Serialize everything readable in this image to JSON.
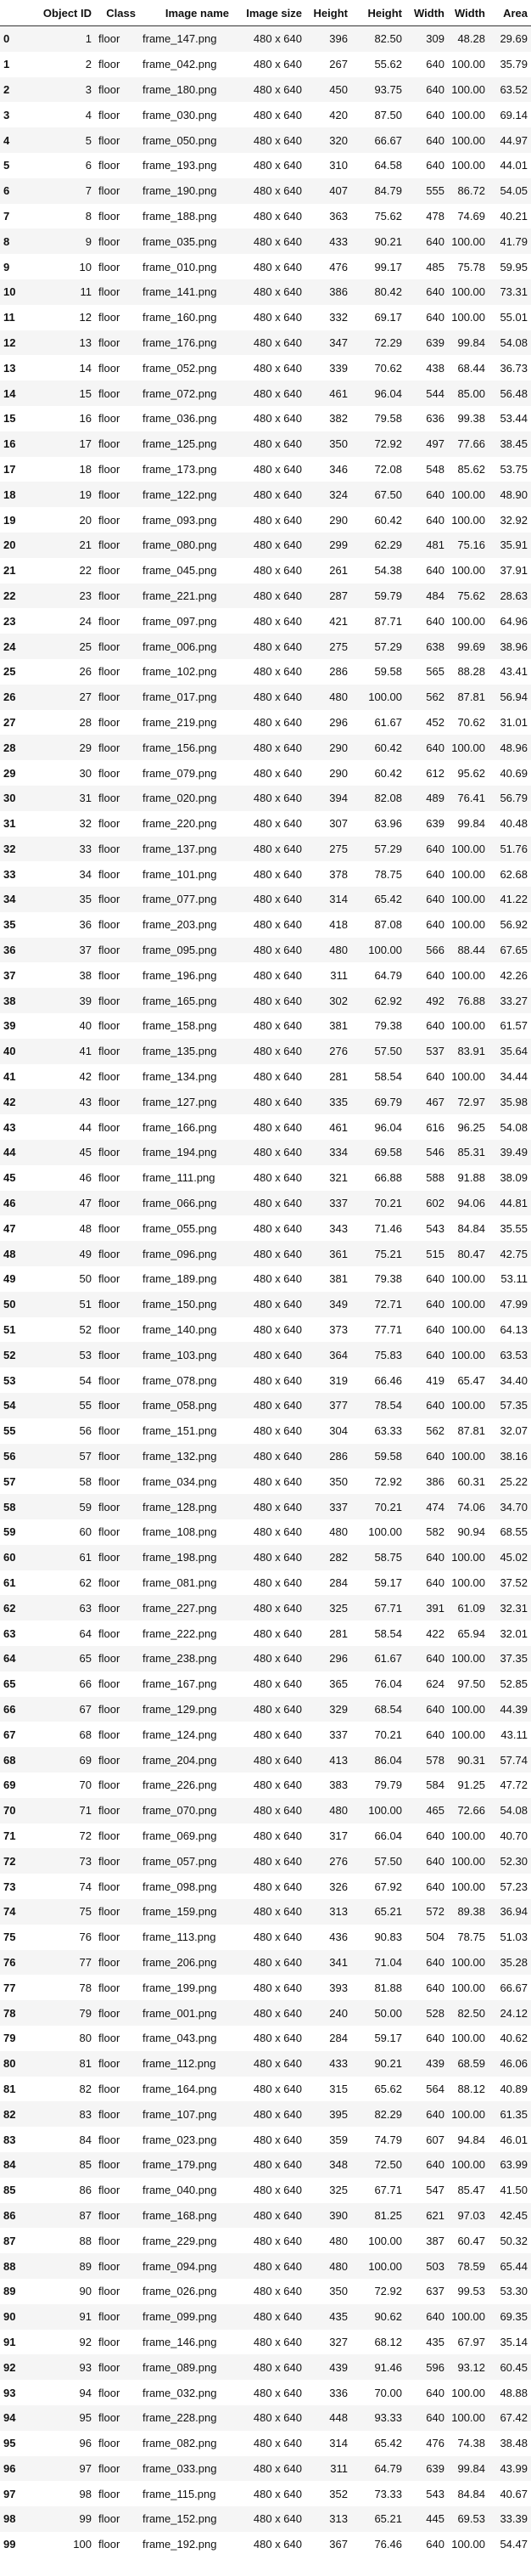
{
  "columns": [
    "",
    "Object ID",
    "Class",
    "Image name",
    "Image size",
    "Height",
    "Height",
    "Width",
    "Width",
    "Area"
  ],
  "rows": [
    [
      "0",
      "1",
      "floor",
      "frame_147.png",
      "480 x 640",
      "396",
      "82.50",
      "309",
      "48.28",
      "29.69"
    ],
    [
      "1",
      "2",
      "floor",
      "frame_042.png",
      "480 x 640",
      "267",
      "55.62",
      "640",
      "100.00",
      "35.79"
    ],
    [
      "2",
      "3",
      "floor",
      "frame_180.png",
      "480 x 640",
      "450",
      "93.75",
      "640",
      "100.00",
      "63.52"
    ],
    [
      "3",
      "4",
      "floor",
      "frame_030.png",
      "480 x 640",
      "420",
      "87.50",
      "640",
      "100.00",
      "69.14"
    ],
    [
      "4",
      "5",
      "floor",
      "frame_050.png",
      "480 x 640",
      "320",
      "66.67",
      "640",
      "100.00",
      "44.97"
    ],
    [
      "5",
      "6",
      "floor",
      "frame_193.png",
      "480 x 640",
      "310",
      "64.58",
      "640",
      "100.00",
      "44.01"
    ],
    [
      "6",
      "7",
      "floor",
      "frame_190.png",
      "480 x 640",
      "407",
      "84.79",
      "555",
      "86.72",
      "54.05"
    ],
    [
      "7",
      "8",
      "floor",
      "frame_188.png",
      "480 x 640",
      "363",
      "75.62",
      "478",
      "74.69",
      "40.21"
    ],
    [
      "8",
      "9",
      "floor",
      "frame_035.png",
      "480 x 640",
      "433",
      "90.21",
      "640",
      "100.00",
      "41.79"
    ],
    [
      "9",
      "10",
      "floor",
      "frame_010.png",
      "480 x 640",
      "476",
      "99.17",
      "485",
      "75.78",
      "59.95"
    ],
    [
      "10",
      "11",
      "floor",
      "frame_141.png",
      "480 x 640",
      "386",
      "80.42",
      "640",
      "100.00",
      "73.31"
    ],
    [
      "11",
      "12",
      "floor",
      "frame_160.png",
      "480 x 640",
      "332",
      "69.17",
      "640",
      "100.00",
      "55.01"
    ],
    [
      "12",
      "13",
      "floor",
      "frame_176.png",
      "480 x 640",
      "347",
      "72.29",
      "639",
      "99.84",
      "54.08"
    ],
    [
      "13",
      "14",
      "floor",
      "frame_052.png",
      "480 x 640",
      "339",
      "70.62",
      "438",
      "68.44",
      "36.73"
    ],
    [
      "14",
      "15",
      "floor",
      "frame_072.png",
      "480 x 640",
      "461",
      "96.04",
      "544",
      "85.00",
      "56.48"
    ],
    [
      "15",
      "16",
      "floor",
      "frame_036.png",
      "480 x 640",
      "382",
      "79.58",
      "636",
      "99.38",
      "53.44"
    ],
    [
      "16",
      "17",
      "floor",
      "frame_125.png",
      "480 x 640",
      "350",
      "72.92",
      "497",
      "77.66",
      "38.45"
    ],
    [
      "17",
      "18",
      "floor",
      "frame_173.png",
      "480 x 640",
      "346",
      "72.08",
      "548",
      "85.62",
      "53.75"
    ],
    [
      "18",
      "19",
      "floor",
      "frame_122.png",
      "480 x 640",
      "324",
      "67.50",
      "640",
      "100.00",
      "48.90"
    ],
    [
      "19",
      "20",
      "floor",
      "frame_093.png",
      "480 x 640",
      "290",
      "60.42",
      "640",
      "100.00",
      "32.92"
    ],
    [
      "20",
      "21",
      "floor",
      "frame_080.png",
      "480 x 640",
      "299",
      "62.29",
      "481",
      "75.16",
      "35.91"
    ],
    [
      "21",
      "22",
      "floor",
      "frame_045.png",
      "480 x 640",
      "261",
      "54.38",
      "640",
      "100.00",
      "37.91"
    ],
    [
      "22",
      "23",
      "floor",
      "frame_221.png",
      "480 x 640",
      "287",
      "59.79",
      "484",
      "75.62",
      "28.63"
    ],
    [
      "23",
      "24",
      "floor",
      "frame_097.png",
      "480 x 640",
      "421",
      "87.71",
      "640",
      "100.00",
      "64.96"
    ],
    [
      "24",
      "25",
      "floor",
      "frame_006.png",
      "480 x 640",
      "275",
      "57.29",
      "638",
      "99.69",
      "38.96"
    ],
    [
      "25",
      "26",
      "floor",
      "frame_102.png",
      "480 x 640",
      "286",
      "59.58",
      "565",
      "88.28",
      "43.41"
    ],
    [
      "26",
      "27",
      "floor",
      "frame_017.png",
      "480 x 640",
      "480",
      "100.00",
      "562",
      "87.81",
      "56.94"
    ],
    [
      "27",
      "28",
      "floor",
      "frame_219.png",
      "480 x 640",
      "296",
      "61.67",
      "452",
      "70.62",
      "31.01"
    ],
    [
      "28",
      "29",
      "floor",
      "frame_156.png",
      "480 x 640",
      "290",
      "60.42",
      "640",
      "100.00",
      "48.96"
    ],
    [
      "29",
      "30",
      "floor",
      "frame_079.png",
      "480 x 640",
      "290",
      "60.42",
      "612",
      "95.62",
      "40.69"
    ],
    [
      "30",
      "31",
      "floor",
      "frame_020.png",
      "480 x 640",
      "394",
      "82.08",
      "489",
      "76.41",
      "56.79"
    ],
    [
      "31",
      "32",
      "floor",
      "frame_220.png",
      "480 x 640",
      "307",
      "63.96",
      "639",
      "99.84",
      "40.48"
    ],
    [
      "32",
      "33",
      "floor",
      "frame_137.png",
      "480 x 640",
      "275",
      "57.29",
      "640",
      "100.00",
      "51.76"
    ],
    [
      "33",
      "34",
      "floor",
      "frame_101.png",
      "480 x 640",
      "378",
      "78.75",
      "640",
      "100.00",
      "62.68"
    ],
    [
      "34",
      "35",
      "floor",
      "frame_077.png",
      "480 x 640",
      "314",
      "65.42",
      "640",
      "100.00",
      "41.22"
    ],
    [
      "35",
      "36",
      "floor",
      "frame_203.png",
      "480 x 640",
      "418",
      "87.08",
      "640",
      "100.00",
      "56.92"
    ],
    [
      "36",
      "37",
      "floor",
      "frame_095.png",
      "480 x 640",
      "480",
      "100.00",
      "566",
      "88.44",
      "67.65"
    ],
    [
      "37",
      "38",
      "floor",
      "frame_196.png",
      "480 x 640",
      "311",
      "64.79",
      "640",
      "100.00",
      "42.26"
    ],
    [
      "38",
      "39",
      "floor",
      "frame_165.png",
      "480 x 640",
      "302",
      "62.92",
      "492",
      "76.88",
      "33.27"
    ],
    [
      "39",
      "40",
      "floor",
      "frame_158.png",
      "480 x 640",
      "381",
      "79.38",
      "640",
      "100.00",
      "61.57"
    ],
    [
      "40",
      "41",
      "floor",
      "frame_135.png",
      "480 x 640",
      "276",
      "57.50",
      "537",
      "83.91",
      "35.64"
    ],
    [
      "41",
      "42",
      "floor",
      "frame_134.png",
      "480 x 640",
      "281",
      "58.54",
      "640",
      "100.00",
      "34.44"
    ],
    [
      "42",
      "43",
      "floor",
      "frame_127.png",
      "480 x 640",
      "335",
      "69.79",
      "467",
      "72.97",
      "35.98"
    ],
    [
      "43",
      "44",
      "floor",
      "frame_166.png",
      "480 x 640",
      "461",
      "96.04",
      "616",
      "96.25",
      "54.08"
    ],
    [
      "44",
      "45",
      "floor",
      "frame_194.png",
      "480 x 640",
      "334",
      "69.58",
      "546",
      "85.31",
      "39.49"
    ],
    [
      "45",
      "46",
      "floor",
      "frame_111.png",
      "480 x 640",
      "321",
      "66.88",
      "588",
      "91.88",
      "38.09"
    ],
    [
      "46",
      "47",
      "floor",
      "frame_066.png",
      "480 x 640",
      "337",
      "70.21",
      "602",
      "94.06",
      "44.81"
    ],
    [
      "47",
      "48",
      "floor",
      "frame_055.png",
      "480 x 640",
      "343",
      "71.46",
      "543",
      "84.84",
      "35.55"
    ],
    [
      "48",
      "49",
      "floor",
      "frame_096.png",
      "480 x 640",
      "361",
      "75.21",
      "515",
      "80.47",
      "42.75"
    ],
    [
      "49",
      "50",
      "floor",
      "frame_189.png",
      "480 x 640",
      "381",
      "79.38",
      "640",
      "100.00",
      "53.11"
    ],
    [
      "50",
      "51",
      "floor",
      "frame_150.png",
      "480 x 640",
      "349",
      "72.71",
      "640",
      "100.00",
      "47.99"
    ],
    [
      "51",
      "52",
      "floor",
      "frame_140.png",
      "480 x 640",
      "373",
      "77.71",
      "640",
      "100.00",
      "64.13"
    ],
    [
      "52",
      "53",
      "floor",
      "frame_103.png",
      "480 x 640",
      "364",
      "75.83",
      "640",
      "100.00",
      "63.53"
    ],
    [
      "53",
      "54",
      "floor",
      "frame_078.png",
      "480 x 640",
      "319",
      "66.46",
      "419",
      "65.47",
      "34.40"
    ],
    [
      "54",
      "55",
      "floor",
      "frame_058.png",
      "480 x 640",
      "377",
      "78.54",
      "640",
      "100.00",
      "57.35"
    ],
    [
      "55",
      "56",
      "floor",
      "frame_151.png",
      "480 x 640",
      "304",
      "63.33",
      "562",
      "87.81",
      "32.07"
    ],
    [
      "56",
      "57",
      "floor",
      "frame_132.png",
      "480 x 640",
      "286",
      "59.58",
      "640",
      "100.00",
      "38.16"
    ],
    [
      "57",
      "58",
      "floor",
      "frame_034.png",
      "480 x 640",
      "350",
      "72.92",
      "386",
      "60.31",
      "25.22"
    ],
    [
      "58",
      "59",
      "floor",
      "frame_128.png",
      "480 x 640",
      "337",
      "70.21",
      "474",
      "74.06",
      "34.70"
    ],
    [
      "59",
      "60",
      "floor",
      "frame_108.png",
      "480 x 640",
      "480",
      "100.00",
      "582",
      "90.94",
      "68.55"
    ],
    [
      "60",
      "61",
      "floor",
      "frame_198.png",
      "480 x 640",
      "282",
      "58.75",
      "640",
      "100.00",
      "45.02"
    ],
    [
      "61",
      "62",
      "floor",
      "frame_081.png",
      "480 x 640",
      "284",
      "59.17",
      "640",
      "100.00",
      "37.52"
    ],
    [
      "62",
      "63",
      "floor",
      "frame_227.png",
      "480 x 640",
      "325",
      "67.71",
      "391",
      "61.09",
      "32.31"
    ],
    [
      "63",
      "64",
      "floor",
      "frame_222.png",
      "480 x 640",
      "281",
      "58.54",
      "422",
      "65.94",
      "32.01"
    ],
    [
      "64",
      "65",
      "floor",
      "frame_238.png",
      "480 x 640",
      "296",
      "61.67",
      "640",
      "100.00",
      "37.35"
    ],
    [
      "65",
      "66",
      "floor",
      "frame_167.png",
      "480 x 640",
      "365",
      "76.04",
      "624",
      "97.50",
      "52.85"
    ],
    [
      "66",
      "67",
      "floor",
      "frame_129.png",
      "480 x 640",
      "329",
      "68.54",
      "640",
      "100.00",
      "44.39"
    ],
    [
      "67",
      "68",
      "floor",
      "frame_124.png",
      "480 x 640",
      "337",
      "70.21",
      "640",
      "100.00",
      "43.11"
    ],
    [
      "68",
      "69",
      "floor",
      "frame_204.png",
      "480 x 640",
      "413",
      "86.04",
      "578",
      "90.31",
      "57.74"
    ],
    [
      "69",
      "70",
      "floor",
      "frame_226.png",
      "480 x 640",
      "383",
      "79.79",
      "584",
      "91.25",
      "47.72"
    ],
    [
      "70",
      "71",
      "floor",
      "frame_070.png",
      "480 x 640",
      "480",
      "100.00",
      "465",
      "72.66",
      "54.08"
    ],
    [
      "71",
      "72",
      "floor",
      "frame_069.png",
      "480 x 640",
      "317",
      "66.04",
      "640",
      "100.00",
      "40.70"
    ],
    [
      "72",
      "73",
      "floor",
      "frame_057.png",
      "480 x 640",
      "276",
      "57.50",
      "640",
      "100.00",
      "52.30"
    ],
    [
      "73",
      "74",
      "floor",
      "frame_098.png",
      "480 x 640",
      "326",
      "67.92",
      "640",
      "100.00",
      "57.23"
    ],
    [
      "74",
      "75",
      "floor",
      "frame_159.png",
      "480 x 640",
      "313",
      "65.21",
      "572",
      "89.38",
      "36.94"
    ],
    [
      "75",
      "76",
      "floor",
      "frame_113.png",
      "480 x 640",
      "436",
      "90.83",
      "504",
      "78.75",
      "51.03"
    ],
    [
      "76",
      "77",
      "floor",
      "frame_206.png",
      "480 x 640",
      "341",
      "71.04",
      "640",
      "100.00",
      "35.28"
    ],
    [
      "77",
      "78",
      "floor",
      "frame_199.png",
      "480 x 640",
      "393",
      "81.88",
      "640",
      "100.00",
      "66.67"
    ],
    [
      "78",
      "79",
      "floor",
      "frame_001.png",
      "480 x 640",
      "240",
      "50.00",
      "528",
      "82.50",
      "24.12"
    ],
    [
      "79",
      "80",
      "floor",
      "frame_043.png",
      "480 x 640",
      "284",
      "59.17",
      "640",
      "100.00",
      "40.62"
    ],
    [
      "80",
      "81",
      "floor",
      "frame_112.png",
      "480 x 640",
      "433",
      "90.21",
      "439",
      "68.59",
      "46.06"
    ],
    [
      "81",
      "82",
      "floor",
      "frame_164.png",
      "480 x 640",
      "315",
      "65.62",
      "564",
      "88.12",
      "40.89"
    ],
    [
      "82",
      "83",
      "floor",
      "frame_107.png",
      "480 x 640",
      "395",
      "82.29",
      "640",
      "100.00",
      "61.35"
    ],
    [
      "83",
      "84",
      "floor",
      "frame_023.png",
      "480 x 640",
      "359",
      "74.79",
      "607",
      "94.84",
      "46.01"
    ],
    [
      "84",
      "85",
      "floor",
      "frame_179.png",
      "480 x 640",
      "348",
      "72.50",
      "640",
      "100.00",
      "63.99"
    ],
    [
      "85",
      "86",
      "floor",
      "frame_040.png",
      "480 x 640",
      "325",
      "67.71",
      "547",
      "85.47",
      "41.50"
    ],
    [
      "86",
      "87",
      "floor",
      "frame_168.png",
      "480 x 640",
      "390",
      "81.25",
      "621",
      "97.03",
      "42.45"
    ],
    [
      "87",
      "88",
      "floor",
      "frame_229.png",
      "480 x 640",
      "480",
      "100.00",
      "387",
      "60.47",
      "50.32"
    ],
    [
      "88",
      "89",
      "floor",
      "frame_094.png",
      "480 x 640",
      "480",
      "100.00",
      "503",
      "78.59",
      "65.44"
    ],
    [
      "89",
      "90",
      "floor",
      "frame_026.png",
      "480 x 640",
      "350",
      "72.92",
      "637",
      "99.53",
      "53.30"
    ],
    [
      "90",
      "91",
      "floor",
      "frame_099.png",
      "480 x 640",
      "435",
      "90.62",
      "640",
      "100.00",
      "69.35"
    ],
    [
      "91",
      "92",
      "floor",
      "frame_146.png",
      "480 x 640",
      "327",
      "68.12",
      "435",
      "67.97",
      "35.14"
    ],
    [
      "92",
      "93",
      "floor",
      "frame_089.png",
      "480 x 640",
      "439",
      "91.46",
      "596",
      "93.12",
      "60.45"
    ],
    [
      "93",
      "94",
      "floor",
      "frame_032.png",
      "480 x 640",
      "336",
      "70.00",
      "640",
      "100.00",
      "48.88"
    ],
    [
      "94",
      "95",
      "floor",
      "frame_228.png",
      "480 x 640",
      "448",
      "93.33",
      "640",
      "100.00",
      "67.42"
    ],
    [
      "95",
      "96",
      "floor",
      "frame_082.png",
      "480 x 640",
      "314",
      "65.42",
      "476",
      "74.38",
      "38.48"
    ],
    [
      "96",
      "97",
      "floor",
      "frame_033.png",
      "480 x 640",
      "311",
      "64.79",
      "639",
      "99.84",
      "43.99"
    ],
    [
      "97",
      "98",
      "floor",
      "frame_115.png",
      "480 x 640",
      "352",
      "73.33",
      "543",
      "84.84",
      "40.67"
    ],
    [
      "98",
      "99",
      "floor",
      "frame_152.png",
      "480 x 640",
      "313",
      "65.21",
      "445",
      "69.53",
      "33.39"
    ],
    [
      "99",
      "100",
      "floor",
      "frame_192.png",
      "480 x 640",
      "367",
      "76.46",
      "640",
      "100.00",
      "54.47"
    ]
  ]
}
